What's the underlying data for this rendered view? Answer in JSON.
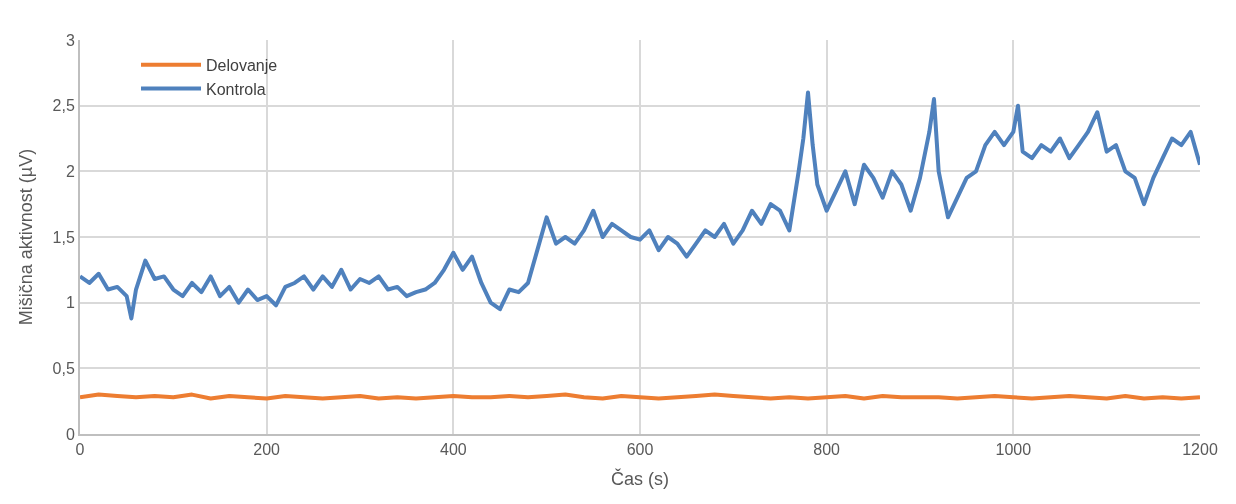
{
  "chart_data": {
    "type": "line",
    "xlabel": "Čas (s)",
    "ylabel": "Mišična aktivnost (µV)",
    "xlim": [
      0,
      1200
    ],
    "xticks": [
      0,
      200,
      400,
      600,
      800,
      1000,
      1200
    ],
    "ylim": [
      0,
      3
    ],
    "yticks": [
      0,
      {
        "value": 0.5,
        "label": "0,5"
      },
      1,
      {
        "value": 1.5,
        "label": "1,5"
      },
      2,
      {
        "value": 2.5,
        "label": "2,5"
      },
      3
    ],
    "grid": true,
    "legend": "top left",
    "marker": "none",
    "line_style": "solid",
    "series": [
      {
        "name": "Delovanje",
        "color": "#ed7d31",
        "x": [
          0,
          20,
          40,
          60,
          80,
          100,
          120,
          140,
          160,
          180,
          200,
          220,
          240,
          260,
          280,
          300,
          320,
          340,
          360,
          380,
          400,
          420,
          440,
          460,
          480,
          500,
          520,
          540,
          560,
          580,
          600,
          620,
          640,
          660,
          680,
          700,
          720,
          740,
          760,
          780,
          800,
          820,
          840,
          860,
          880,
          900,
          920,
          940,
          960,
          980,
          1000,
          1020,
          1040,
          1060,
          1080,
          1100,
          1120,
          1140,
          1160,
          1180,
          1200
        ],
        "values": [
          0.28,
          0.3,
          0.29,
          0.28,
          0.29,
          0.28,
          0.3,
          0.27,
          0.29,
          0.28,
          0.27,
          0.29,
          0.28,
          0.27,
          0.28,
          0.29,
          0.27,
          0.28,
          0.27,
          0.28,
          0.29,
          0.28,
          0.28,
          0.29,
          0.28,
          0.29,
          0.3,
          0.28,
          0.27,
          0.29,
          0.28,
          0.27,
          0.28,
          0.29,
          0.3,
          0.29,
          0.28,
          0.27,
          0.28,
          0.27,
          0.28,
          0.29,
          0.27,
          0.29,
          0.28,
          0.28,
          0.28,
          0.27,
          0.28,
          0.29,
          0.28,
          0.27,
          0.28,
          0.29,
          0.28,
          0.27,
          0.29,
          0.27,
          0.28,
          0.27,
          0.28
        ]
      },
      {
        "name": "Kontrola",
        "color": "#4f81bd",
        "x": [
          0,
          10,
          20,
          30,
          40,
          50,
          55,
          60,
          70,
          80,
          90,
          100,
          110,
          120,
          130,
          140,
          150,
          160,
          170,
          180,
          190,
          200,
          210,
          220,
          230,
          240,
          250,
          260,
          270,
          280,
          290,
          300,
          310,
          320,
          330,
          340,
          350,
          360,
          370,
          380,
          390,
          400,
          410,
          420,
          430,
          440,
          450,
          460,
          470,
          480,
          490,
          500,
          510,
          520,
          530,
          540,
          550,
          560,
          570,
          580,
          590,
          600,
          610,
          620,
          630,
          640,
          650,
          660,
          670,
          680,
          690,
          700,
          710,
          720,
          730,
          740,
          750,
          760,
          770,
          775,
          780,
          785,
          790,
          800,
          810,
          820,
          830,
          840,
          850,
          860,
          870,
          880,
          890,
          900,
          910,
          915,
          920,
          930,
          940,
          950,
          960,
          970,
          980,
          990,
          1000,
          1005,
          1010,
          1020,
          1030,
          1040,
          1050,
          1060,
          1070,
          1080,
          1090,
          1100,
          1110,
          1120,
          1130,
          1140,
          1150,
          1160,
          1170,
          1180,
          1190,
          1200
        ],
        "values": [
          1.2,
          1.15,
          1.22,
          1.1,
          1.12,
          1.05,
          0.88,
          1.1,
          1.32,
          1.18,
          1.2,
          1.1,
          1.05,
          1.15,
          1.08,
          1.2,
          1.05,
          1.12,
          1.0,
          1.1,
          1.02,
          1.05,
          0.98,
          1.12,
          1.15,
          1.2,
          1.1,
          1.2,
          1.12,
          1.25,
          1.1,
          1.18,
          1.15,
          1.2,
          1.1,
          1.12,
          1.05,
          1.08,
          1.1,
          1.15,
          1.25,
          1.38,
          1.25,
          1.35,
          1.15,
          1.0,
          0.95,
          1.1,
          1.08,
          1.15,
          1.4,
          1.65,
          1.45,
          1.5,
          1.45,
          1.55,
          1.7,
          1.5,
          1.6,
          1.55,
          1.5,
          1.48,
          1.55,
          1.4,
          1.5,
          1.45,
          1.35,
          1.45,
          1.55,
          1.5,
          1.6,
          1.45,
          1.55,
          1.7,
          1.6,
          1.75,
          1.7,
          1.55,
          2.0,
          2.25,
          2.6,
          2.2,
          1.9,
          1.7,
          1.85,
          2.0,
          1.75,
          2.05,
          1.95,
          1.8,
          2.0,
          1.9,
          1.7,
          1.95,
          2.3,
          2.55,
          2.0,
          1.65,
          1.8,
          1.95,
          2.0,
          2.2,
          2.3,
          2.2,
          2.3,
          2.5,
          2.15,
          2.1,
          2.2,
          2.15,
          2.25,
          2.1,
          2.2,
          2.3,
          2.45,
          2.15,
          2.2,
          2.0,
          1.95,
          1.75,
          1.95,
          2.1,
          2.25,
          2.2,
          2.3,
          2.05
        ]
      }
    ]
  }
}
